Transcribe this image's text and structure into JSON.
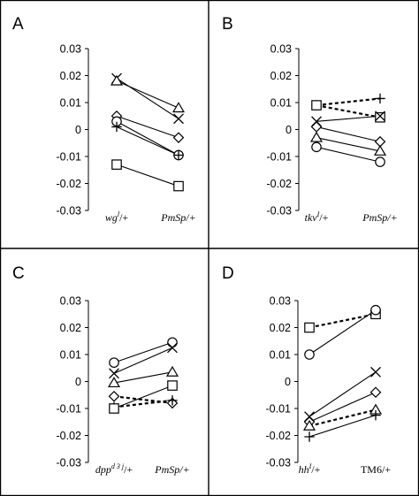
{
  "chart_data": [
    {
      "type": "line",
      "panel": "A",
      "categories": [
        {
          "text": "wg",
          "sup": "l",
          "rest": "/+",
          "italic": true
        },
        {
          "text": "PmSp/+",
          "sup": "",
          "rest": "",
          "italic": true
        }
      ],
      "yticks": [
        "0.03",
        "0.02",
        "0.01",
        "0",
        "-0.01",
        "-0.02",
        "-0.03"
      ],
      "ylim": [
        -0.03,
        0.03
      ],
      "series": [
        {
          "marker": "cross",
          "values": [
            0.019,
            0.004
          ],
          "dashed": false
        },
        {
          "marker": "triangle",
          "values": [
            0.018,
            0.008
          ],
          "dashed": false
        },
        {
          "marker": "diamond",
          "values": [
            0.005,
            -0.003
          ],
          "dashed": false
        },
        {
          "marker": "circle",
          "values": [
            0.003,
            -0.0095
          ],
          "dashed": false
        },
        {
          "marker": "plus",
          "values": [
            0.001,
            -0.0095
          ],
          "dashed": false
        },
        {
          "marker": "square",
          "values": [
            -0.013,
            -0.021
          ],
          "dashed": false
        }
      ]
    },
    {
      "type": "line",
      "panel": "B",
      "categories": [
        {
          "text": "tkv",
          "sup": "I",
          "rest": "/+",
          "italic": true
        },
        {
          "text": "PmSp/+",
          "sup": "",
          "rest": "",
          "italic": true
        }
      ],
      "yticks": [
        "0.03",
        "0.02",
        "0.01",
        "0",
        "-0.01",
        "-0.02",
        "-0.03"
      ],
      "ylim": [
        -0.03,
        0.03
      ],
      "series": [
        {
          "marker": "plus",
          "values": [
            0.009,
            0.0115
          ],
          "dashed": true
        },
        {
          "marker": "square",
          "values": [
            0.009,
            0.0045
          ],
          "dashed": true
        },
        {
          "marker": "cross",
          "values": [
            0.003,
            0.005
          ],
          "dashed": false
        },
        {
          "marker": "diamond",
          "values": [
            0.001,
            -0.0045
          ],
          "dashed": false
        },
        {
          "marker": "triangle",
          "values": [
            -0.003,
            -0.008
          ],
          "dashed": false
        },
        {
          "marker": "circle",
          "values": [
            -0.0065,
            -0.012
          ],
          "dashed": false
        }
      ]
    },
    {
      "type": "line",
      "panel": "C",
      "categories": [
        {
          "text": "dpp",
          "sup": "d 3 j",
          "rest": "/+",
          "italic": true
        },
        {
          "text": "PmSp/+",
          "sup": "",
          "rest": "",
          "italic": true
        }
      ],
      "yticks": [
        "0.03",
        "0.02",
        "0.01",
        "0",
        "-0.01",
        "-0.02",
        "-0.03"
      ],
      "ylim": [
        -0.03,
        0.03
      ],
      "series": [
        {
          "marker": "circle",
          "values": [
            0.007,
            0.0145
          ],
          "dashed": false
        },
        {
          "marker": "cross",
          "values": [
            0.003,
            0.0125
          ],
          "dashed": false
        },
        {
          "marker": "triangle",
          "values": [
            -0.0005,
            0.0035
          ],
          "dashed": false
        },
        {
          "marker": "diamond",
          "values": [
            -0.0055,
            -0.008
          ],
          "dashed": true
        },
        {
          "marker": "plus",
          "values": [
            -0.0095,
            -0.007
          ],
          "dashed": true
        },
        {
          "marker": "square",
          "values": [
            -0.01,
            -0.0015
          ],
          "dashed": false
        }
      ]
    },
    {
      "type": "line",
      "panel": "D",
      "categories": [
        {
          "text": "hh",
          "sup": "I",
          "rest": "/+",
          "italic": true
        },
        {
          "text": "TM6/+",
          "sup": "",
          "rest": "",
          "italic": false
        }
      ],
      "yticks": [
        "0.03",
        "0.02",
        "0.01",
        "0",
        "-0.01",
        "-0.02",
        "-0.03"
      ],
      "ylim": [
        -0.03,
        0.03
      ],
      "series": [
        {
          "marker": "square",
          "values": [
            0.02,
            0.025
          ],
          "dashed": true
        },
        {
          "marker": "circle",
          "values": [
            0.01,
            0.0265
          ],
          "dashed": false
        },
        {
          "marker": "cross",
          "values": [
            -0.013,
            0.0035
          ],
          "dashed": false
        },
        {
          "marker": "diamond",
          "values": [
            -0.015,
            -0.004
          ],
          "dashed": false
        },
        {
          "marker": "triangle",
          "values": [
            -0.0165,
            -0.0105
          ],
          "dashed": true
        },
        {
          "marker": "plus",
          "values": [
            -0.0205,
            -0.0125
          ],
          "dashed": false
        }
      ]
    }
  ]
}
